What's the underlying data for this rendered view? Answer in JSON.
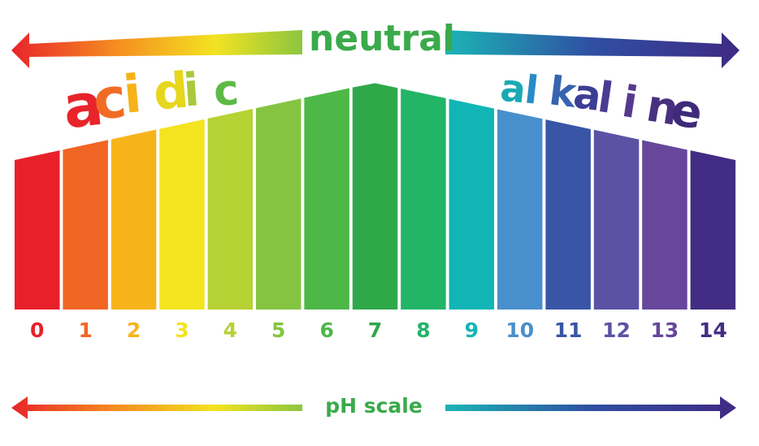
{
  "labels": {
    "neutral": "neutral",
    "acidic": "acidic",
    "alkaline": "alkaline",
    "scale": "pH scale"
  },
  "colors": {
    "arrow_red": "#e8242a",
    "arrow_orange": "#f58a20",
    "arrow_yellow": "#f3e321",
    "arrow_green": "#8cc63f",
    "arrow_teal": "#1bb5b5",
    "arrow_blue": "#2f4fa2",
    "arrow_purple": "#3f2a84"
  },
  "acidic_letter_colors": [
    "#e8242a",
    "#f26b25",
    "#f6b319",
    "#e6d71d",
    "#a9c93b",
    "#5dba47"
  ],
  "alkaline_letter_colors": [
    "#1aa9b5",
    "#2a8bc6",
    "#3664ae",
    "#3c3e94",
    "#4b3c93",
    "#553a90",
    "#47307f",
    "#3f2a7a"
  ],
  "scale": [
    {
      "value": "0",
      "color": "#e8202a"
    },
    {
      "value": "1",
      "color": "#f16524"
    },
    {
      "value": "2",
      "color": "#f7b41a"
    },
    {
      "value": "3",
      "color": "#f4e41f"
    },
    {
      "value": "4",
      "color": "#b6d234"
    },
    {
      "value": "5",
      "color": "#84c441"
    },
    {
      "value": "6",
      "color": "#4db848"
    },
    {
      "value": "7",
      "color": "#2fa84a"
    },
    {
      "value": "8",
      "color": "#22b467"
    },
    {
      "value": "9",
      "color": "#12b5b5"
    },
    {
      "value": "10",
      "color": "#4a8fcd"
    },
    {
      "value": "11",
      "color": "#3855a6"
    },
    {
      "value": "12",
      "color": "#5c52a4"
    },
    {
      "value": "13",
      "color": "#66479c"
    },
    {
      "value": "14",
      "color": "#432d84"
    }
  ]
}
